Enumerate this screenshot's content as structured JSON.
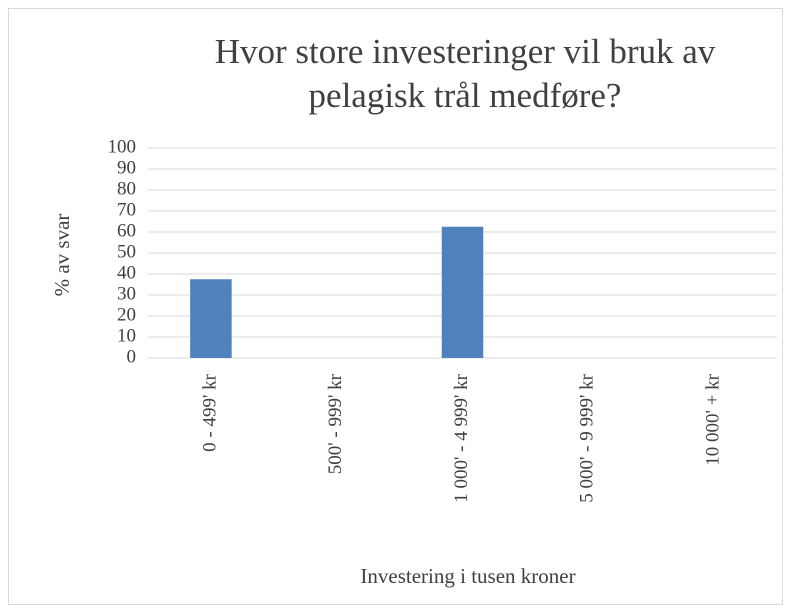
{
  "chart_data": {
    "type": "bar",
    "title": "Hvor store investeringer vil bruk av pelagisk trål medføre?",
    "x_label": "Investering i tusen kroner",
    "y_label": "% av svar",
    "categories": [
      "0 - 499' kr",
      "500' - 999' kr",
      "1 000' - 4 999' kr",
      "5 000' - 9 999' kr",
      "10 000' + kr"
    ],
    "values": [
      37.5,
      0,
      62.5,
      0,
      0
    ],
    "color": "#4f81bd",
    "ylim": [
      0,
      100
    ],
    "yticks": [
      0,
      10,
      20,
      30,
      40,
      50,
      60,
      70,
      80,
      90,
      100
    ],
    "grid": true
  }
}
